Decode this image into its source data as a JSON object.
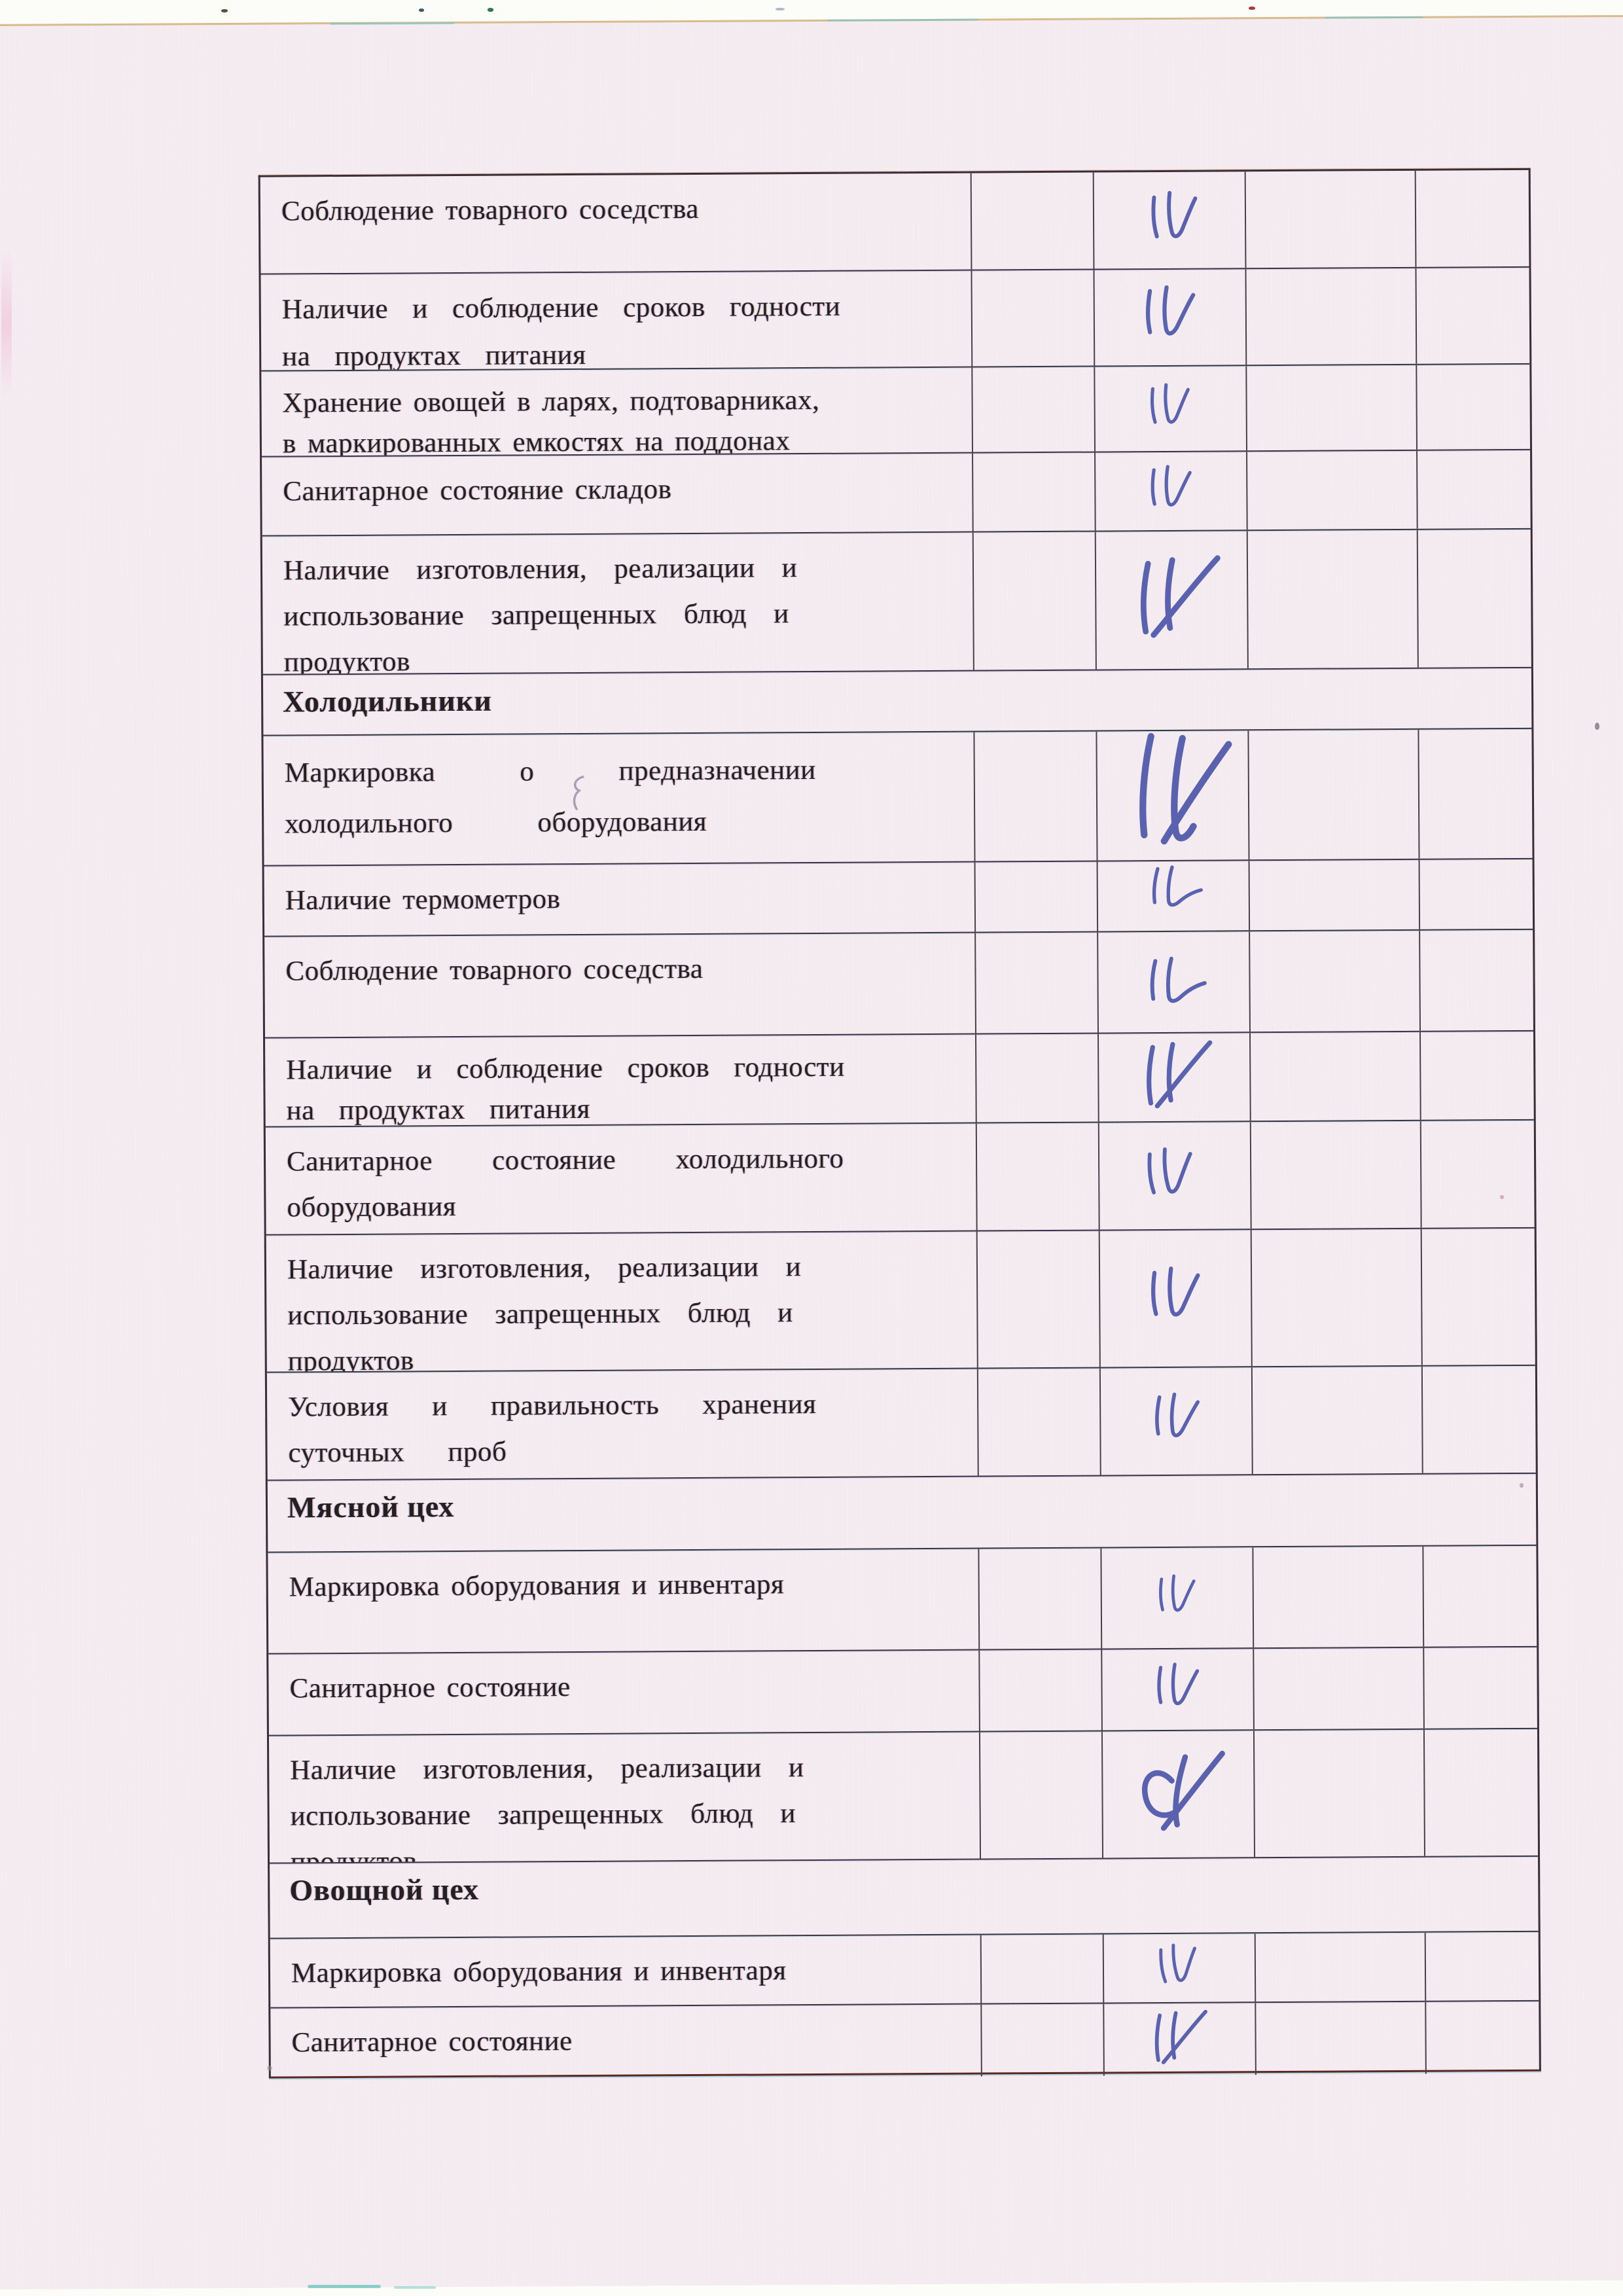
{
  "document": {
    "kind": "scanned sanitary inspection checklist page (Russian)",
    "language": "ru",
    "paper_color": "#f5ecf1",
    "line_color": "#3e3540",
    "ink_color": "#4d57ab",
    "text_color": "#241f22"
  },
  "marks_legend": {
    "a": "pen check: double downstroke with check tail",
    "b": "pen check: tall double stroke with long separate check",
    "c": "pen check: double stroke with horizontal swoosh",
    "d": "pen check: double stroke crossed by long check",
    "e": "pen check: c-curl, downstroke and long crossing check"
  },
  "table": {
    "columns": [
      "criterion",
      "blank-1",
      "mark-column",
      "blank-2",
      "blank-3"
    ],
    "rows": [
      {
        "text": "Соблюдение товарного соседства",
        "header": false,
        "mark": "a"
      },
      {
        "text": "Наличие и соблюдение сроков годности\nна продуктах питания",
        "header": false,
        "mark": "a"
      },
      {
        "text": "Хранение овощей в ларях, подтоварниках,\nв маркированных емкостях на поддонах",
        "header": false,
        "mark": "a"
      },
      {
        "text": "Санитарное состояние складов",
        "header": false,
        "mark": "a"
      },
      {
        "text": "Наличие изготовления, реализации и\nиспользование запрещенных блюд и\nпродуктов",
        "header": false,
        "mark": "d"
      },
      {
        "text": "Холодильники",
        "header": true,
        "mark": null
      },
      {
        "text": "Маркировка о предназначении\nхолодильного оборудования",
        "header": false,
        "mark": "b"
      },
      {
        "text": "Наличие термометров",
        "header": false,
        "mark": "c"
      },
      {
        "text": "Соблюдение товарного соседства",
        "header": false,
        "mark": "c"
      },
      {
        "text": "Наличие и соблюдение сроков годности\nна продуктах питания",
        "header": false,
        "mark": "d"
      },
      {
        "text": "Санитарное состояние холодильного\nоборудования",
        "header": false,
        "mark": "a"
      },
      {
        "text": "Наличие изготовления, реализации и\nиспользование запрещенных блюд и\nпродуктов",
        "header": false,
        "mark": "a"
      },
      {
        "text": "Условия и правильность хранения\nсуточных проб",
        "header": false,
        "mark": "a"
      },
      {
        "text": "Мясной цех",
        "header": true,
        "mark": null
      },
      {
        "text": "Маркировка оборудования и инвентаря",
        "header": false,
        "mark": "a"
      },
      {
        "text": "Санитарное состояние",
        "header": false,
        "mark": "a"
      },
      {
        "text": "Наличие изготовления, реализации и\nиспользование запрещенных блюд и\nпродуктов",
        "header": false,
        "mark": "e"
      },
      {
        "text": "Овощной цех",
        "header": true,
        "mark": null
      },
      {
        "text": "Маркировка оборудования и инвентаря",
        "header": false,
        "mark": "a"
      },
      {
        "text": "Санитарное состояние",
        "header": false,
        "mark": "d"
      }
    ]
  }
}
